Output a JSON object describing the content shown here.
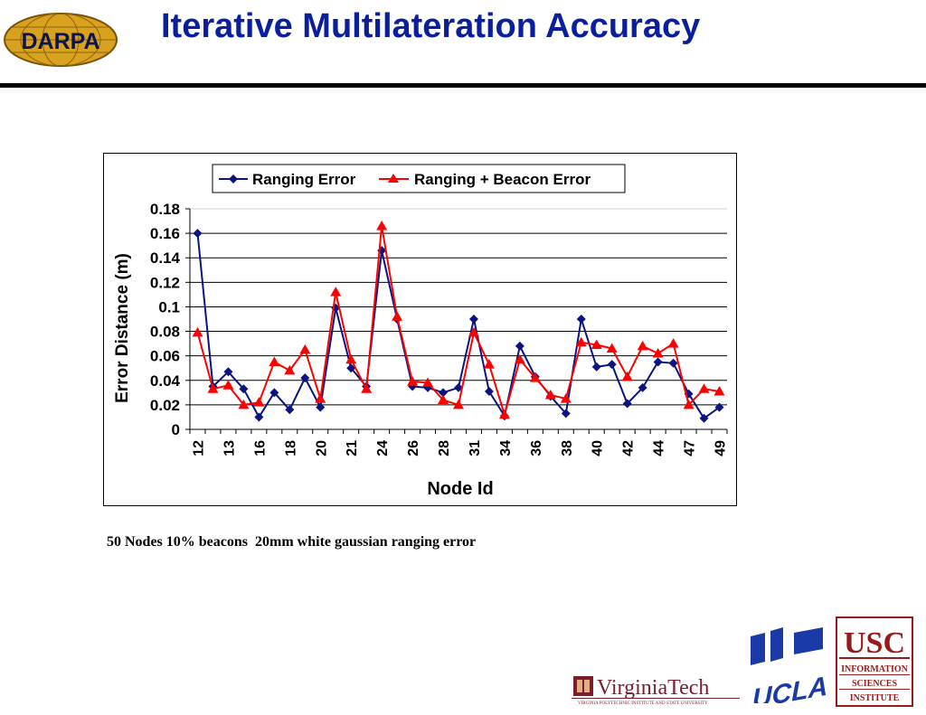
{
  "header": {
    "title": "Iterative Multilateration Accuracy",
    "darpa_logo_text": "DARPA"
  },
  "caption": "50 Nodes 10% beacons  20mm white gaussian ranging error",
  "logos": {
    "virginia_tech": "VirginiaTech",
    "virginia_tech_sub": "VIRGINIA POLYTECHNIC INSTITUTE AND STATE UNIVERSITY",
    "ucla": "UCLA",
    "usc": "USC",
    "usc_sub": [
      "INFORMATION",
      "SCIENCES",
      "INSTITUTE"
    ]
  },
  "colors": {
    "title": "#0a1f9c",
    "series1": "#0a1480",
    "series2": "#ff0000"
  },
  "chart_data": {
    "type": "line",
    "xlabel": "Node Id",
    "ylabel": "Error Distance (m)",
    "ylim": [
      0,
      0.18
    ],
    "yticks": [
      0,
      0.02,
      0.04,
      0.06,
      0.08,
      0.1,
      0.12,
      0.14,
      0.16,
      0.18
    ],
    "ytick_labels": [
      "0",
      "0.02",
      "0.04",
      "0.06",
      "0.08",
      "0.1",
      "0.12",
      "0.14",
      "0.16",
      "0.18"
    ],
    "grid": true,
    "legend_position": "top",
    "x_tick_labels": [
      "12",
      "13",
      "16",
      "18",
      "20",
      "21",
      "24",
      "26",
      "28",
      "31",
      "34",
      "36",
      "38",
      "40",
      "42",
      "44",
      "47",
      "49"
    ],
    "series": [
      {
        "name": "Ranging Error",
        "marker": "diamond",
        "values": [
          0.16,
          0.035,
          0.047,
          0.033,
          0.01,
          0.03,
          0.016,
          0.042,
          0.018,
          0.099,
          0.05,
          0.035,
          0.146,
          0.09,
          0.035,
          0.034,
          0.03,
          0.034,
          0.09,
          0.031,
          0.011,
          0.068,
          0.043,
          0.027,
          0.013,
          0.09,
          0.051,
          0.053,
          0.021,
          0.034,
          0.055,
          0.054,
          0.029,
          0.009,
          0.018
        ]
      },
      {
        "name": "Ranging + Beacon Error",
        "marker": "triangle",
        "values": [
          0.079,
          0.033,
          0.036,
          0.02,
          0.022,
          0.055,
          0.048,
          0.065,
          0.025,
          0.112,
          0.057,
          0.033,
          0.166,
          0.092,
          0.039,
          0.038,
          0.024,
          0.02,
          0.079,
          0.053,
          0.012,
          0.057,
          0.042,
          0.028,
          0.025,
          0.071,
          0.069,
          0.066,
          0.043,
          0.068,
          0.062,
          0.07,
          0.02,
          0.033,
          0.031
        ]
      }
    ]
  }
}
